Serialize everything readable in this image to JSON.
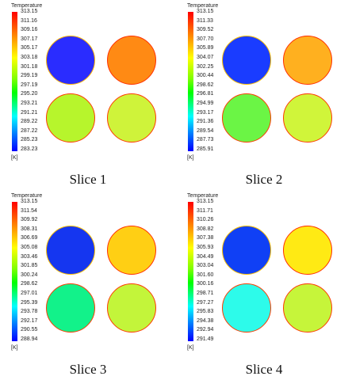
{
  "colormap": [
    "#ff0000",
    "#ff7f00",
    "#ffff00",
    "#7fff00",
    "#00ff00",
    "#00ffff",
    "#0080ff",
    "#0000ff"
  ],
  "panels": [
    {
      "caption": "Slice 1",
      "legend_title": "Temperature",
      "unit": "[K]",
      "ticks": [
        "313.15",
        "311.16",
        "309.16",
        "307.17",
        "305.17",
        "303.18",
        "301.18",
        "299.19",
        "297.19",
        "295.20",
        "293.21",
        "291.21",
        "289.22",
        "287.22",
        "285.23",
        "283.23"
      ],
      "circles": [
        {
          "fill": "#2a2cff",
          "ring": "#ffd200",
          "edge": "#ffb400"
        },
        {
          "fill": "#ff8a14",
          "ring": "#ff3a00",
          "edge": "#ff3000"
        },
        {
          "fill": "#b7f52c",
          "ring": "#ff5a00",
          "edge": "#ff3a00"
        },
        {
          "fill": "#cff33a",
          "ring": "#ff6a00",
          "edge": "#ff3a00"
        }
      ]
    },
    {
      "caption": "Slice 2",
      "legend_title": "Temperature",
      "unit": "[K]",
      "ticks": [
        "313.15",
        "311.33",
        "309.52",
        "307.70",
        "305.89",
        "304.07",
        "302.25",
        "300.44",
        "298.62",
        "296.81",
        "294.99",
        "293.17",
        "291.36",
        "289.54",
        "287.73",
        "285.91"
      ],
      "circles": [
        {
          "fill": "#1a3cff",
          "ring": "#ffe000",
          "edge": "#ffc000"
        },
        {
          "fill": "#ffb01f",
          "ring": "#ff4a00",
          "edge": "#ff3000"
        },
        {
          "fill": "#6bf545",
          "ring": "#ff6000",
          "edge": "#ff3a00"
        },
        {
          "fill": "#d0f53a",
          "ring": "#ff6a00",
          "edge": "#ff3a00"
        }
      ]
    },
    {
      "caption": "Slice 3",
      "legend_title": "Temperature",
      "unit": "[K]",
      "ticks": [
        "313.15",
        "311.54",
        "309.92",
        "308.31",
        "306.69",
        "305.08",
        "303.46",
        "301.85",
        "300.24",
        "298.62",
        "297.01",
        "295.39",
        "293.78",
        "292.17",
        "290.55",
        "288.94"
      ],
      "circles": [
        {
          "fill": "#1536f0",
          "ring": "#ffe000",
          "edge": "#ffc000"
        },
        {
          "fill": "#ffcf14",
          "ring": "#ff5000",
          "edge": "#ff3000"
        },
        {
          "fill": "#12f28a",
          "ring": "#ff6000",
          "edge": "#ff3a00"
        },
        {
          "fill": "#c3f53a",
          "ring": "#ff6a00",
          "edge": "#ff3a00"
        }
      ]
    },
    {
      "caption": "Slice 4",
      "legend_title": "Temperature",
      "unit": "[K]",
      "ticks": [
        "313.15",
        "311.71",
        "310.26",
        "308.82",
        "307.38",
        "305.93",
        "304.49",
        "303.04",
        "301.60",
        "300.16",
        "298.71",
        "297.27",
        "295.83",
        "294.38",
        "292.94",
        "291.49"
      ],
      "circles": [
        {
          "fill": "#1040f5",
          "ring": "#ffe000",
          "edge": "#ffc000"
        },
        {
          "fill": "#ffea14",
          "ring": "#ff5000",
          "edge": "#ff3000"
        },
        {
          "fill": "#2dfbea",
          "ring": "#ff6000",
          "edge": "#ff3a00"
        },
        {
          "fill": "#c6f53a",
          "ring": "#ff6a00",
          "edge": "#ff3a00"
        }
      ]
    }
  ]
}
